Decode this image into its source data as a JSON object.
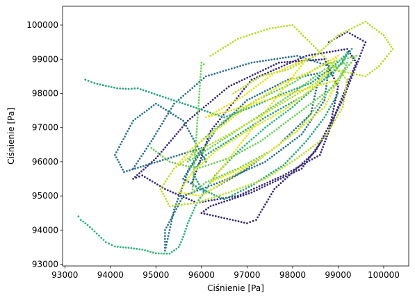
{
  "chart_data": {
    "type": "scatter",
    "xlabel": "Ciśnienie [Pa]",
    "ylabel": "Ciśnienie [Pa]",
    "xlim": [
      92950,
      100550
    ],
    "ylim": [
      92950,
      100550
    ],
    "xticks": [
      93000,
      94000,
      95000,
      96000,
      97000,
      98000,
      99000,
      100000
    ],
    "yticks": [
      93000,
      94000,
      95000,
      96000,
      97000,
      98000,
      99000,
      100000
    ],
    "xtick_labels": [
      "93000",
      "94000",
      "95000",
      "96000",
      "97000",
      "98000",
      "99000",
      "100000"
    ],
    "ytick_labels": [
      "93000",
      "94000",
      "95000",
      "96000",
      "97000",
      "98000",
      "99000",
      "100000"
    ],
    "grid": false,
    "colormap": "viridis",
    "color_stops": [
      "#440154",
      "#3b528b",
      "#21918c",
      "#5ec962",
      "#fde725"
    ],
    "series": [
      {
        "color": "#3b2a7a",
        "points": [
          [
            95800,
            95400
          ],
          [
            96200,
            96900
          ],
          [
            97100,
            98400
          ],
          [
            98300,
            99100
          ],
          [
            99200,
            99300
          ],
          [
            99400,
            98900
          ],
          [
            99000,
            97600
          ],
          [
            98600,
            96200
          ],
          [
            97800,
            95600
          ],
          [
            96800,
            95000
          ],
          [
            95900,
            94800
          ],
          [
            95200,
            95200
          ],
          [
            94700,
            95600
          ],
          [
            94500,
            95500
          ],
          [
            95000,
            96100
          ],
          [
            95700,
            97200
          ],
          [
            96600,
            98200
          ],
          [
            97700,
            98900
          ],
          [
            98700,
            99000
          ],
          [
            99000,
            98200
          ],
          [
            98800,
            96900
          ],
          [
            98200,
            95800
          ],
          [
            97100,
            95100
          ],
          [
            96200,
            94700
          ],
          [
            96000,
            94500
          ],
          [
            97000,
            94200
          ],
          [
            97200,
            94300
          ],
          [
            97600,
            95200
          ],
          [
            98500,
            96300
          ],
          [
            99100,
            97800
          ],
          [
            99600,
            99500
          ],
          [
            99200,
            99800
          ],
          [
            98800,
            99500
          ]
        ]
      },
      {
        "color": "#2c728e",
        "points": [
          [
            94500,
            95800
          ],
          [
            94900,
            96600
          ],
          [
            95400,
            97700
          ],
          [
            96100,
            98500
          ],
          [
            97100,
            98900
          ],
          [
            98100,
            99100
          ],
          [
            98800,
            98800
          ],
          [
            98700,
            97800
          ],
          [
            98200,
            96800
          ],
          [
            97400,
            96000
          ],
          [
            96400,
            95400
          ],
          [
            95600,
            95000
          ],
          [
            95200,
            94000
          ],
          [
            95200,
            93400
          ],
          [
            95400,
            94600
          ],
          [
            95700,
            95700
          ],
          [
            96300,
            96900
          ],
          [
            97000,
            97800
          ],
          [
            97900,
            98400
          ],
          [
            98600,
            98600
          ],
          [
            98400,
            97400
          ],
          [
            97700,
            96500
          ],
          [
            96900,
            95700
          ],
          [
            96100,
            95100
          ],
          [
            95600,
            95500
          ],
          [
            96000,
            96400
          ],
          [
            94300,
            95700
          ],
          [
            94100,
            96200
          ],
          [
            94500,
            97200
          ],
          [
            95000,
            97700
          ],
          [
            95600,
            97200
          ],
          [
            96100,
            96000
          ]
        ]
      },
      {
        "color": "#24a27f",
        "points": [
          [
            93450,
            98400
          ],
          [
            93650,
            98300
          ],
          [
            93900,
            98220
          ],
          [
            94150,
            98150
          ],
          [
            94400,
            98130
          ],
          [
            94600,
            98150
          ],
          [
            96500,
            97300
          ],
          [
            97100,
            97600
          ],
          [
            97800,
            98000
          ],
          [
            98400,
            98300
          ],
          [
            98900,
            98800
          ],
          [
            99300,
            99300
          ],
          [
            98900,
            98600
          ],
          [
            98200,
            97900
          ],
          [
            97400,
            97300
          ],
          [
            96700,
            96700
          ],
          [
            96100,
            96200
          ],
          [
            95800,
            95700
          ],
          [
            96000,
            95200
          ],
          [
            96500,
            94900
          ],
          [
            97100,
            95300
          ],
          [
            97800,
            95900
          ],
          [
            98300,
            96600
          ],
          [
            98700,
            97300
          ],
          [
            99000,
            98000
          ]
        ]
      },
      {
        "color": "#2db27d",
        "points": [
          [
            93300,
            94400
          ],
          [
            93350,
            94300
          ],
          [
            93500,
            94150
          ],
          [
            93700,
            93900
          ],
          [
            93900,
            93650
          ],
          [
            94100,
            93520
          ],
          [
            94400,
            93480
          ],
          [
            94700,
            93430
          ],
          [
            95000,
            93320
          ],
          [
            95300,
            93310
          ],
          [
            95500,
            93500
          ],
          [
            95600,
            93800
          ],
          [
            95700,
            94200
          ],
          [
            95900,
            94800
          ],
          [
            96300,
            95600
          ],
          [
            96800,
            96300
          ],
          [
            97400,
            97000
          ],
          [
            98000,
            97600
          ],
          [
            98600,
            98300
          ],
          [
            99100,
            98900
          ],
          [
            99200,
            99200
          ]
        ]
      },
      {
        "color": "#6ccd5a",
        "points": [
          [
            94900,
            96400
          ],
          [
            95300,
            96000
          ],
          [
            95900,
            95800
          ],
          [
            96600,
            96100
          ],
          [
            97300,
            96600
          ],
          [
            98000,
            97300
          ],
          [
            98600,
            97900
          ],
          [
            99000,
            98300
          ],
          [
            99200,
            98900
          ],
          [
            98700,
            98700
          ],
          [
            98000,
            98000
          ],
          [
            97100,
            97200
          ],
          [
            96300,
            96500
          ],
          [
            95700,
            96000
          ],
          [
            95900,
            96500
          ],
          [
            96500,
            97200
          ],
          [
            97200,
            97800
          ],
          [
            98000,
            98300
          ],
          [
            98600,
            98800
          ],
          [
            99400,
            99100
          ],
          [
            98100,
            96900
          ],
          [
            97500,
            96300
          ],
          [
            96800,
            95800
          ],
          [
            96100,
            95400
          ],
          [
            95800,
            95100
          ],
          [
            96000,
            98900
          ],
          [
            96050,
            98850
          ]
        ]
      },
      {
        "color": "#b5de2b",
        "points": [
          [
            96700,
            98000
          ],
          [
            97300,
            98500
          ],
          [
            97900,
            98700
          ],
          [
            98500,
            99100
          ],
          [
            99000,
            99700
          ],
          [
            99600,
            100100
          ],
          [
            100000,
            99700
          ],
          [
            100200,
            99300
          ],
          [
            99900,
            98800
          ],
          [
            99600,
            98500
          ],
          [
            98900,
            98700
          ],
          [
            98500,
            98300
          ],
          [
            97500,
            97500
          ],
          [
            96600,
            96800
          ],
          [
            95900,
            96300
          ],
          [
            95400,
            95800
          ],
          [
            95100,
            95200
          ],
          [
            95300,
            94700
          ],
          [
            95900,
            94800
          ],
          [
            96600,
            95100
          ],
          [
            97400,
            95500
          ],
          [
            98100,
            96100
          ],
          [
            98700,
            96700
          ],
          [
            99100,
            97600
          ],
          [
            99200,
            98400
          ],
          [
            98000,
            100000
          ],
          [
            97500,
            99900
          ],
          [
            96800,
            99600
          ],
          [
            96200,
            99100
          ]
        ]
      },
      {
        "color": "#e4e419",
        "points": [
          [
            95400,
            95800
          ],
          [
            95800,
            96400
          ],
          [
            96400,
            97000
          ],
          [
            97100,
            97700
          ],
          [
            97800,
            98300
          ],
          [
            98500,
            98700
          ],
          [
            99000,
            99100
          ],
          [
            98500,
            98200
          ],
          [
            97800,
            97500
          ],
          [
            97000,
            96900
          ],
          [
            96300,
            96300
          ],
          [
            95800,
            95700
          ],
          [
            95500,
            95100
          ],
          [
            96000,
            95000
          ],
          [
            96700,
            95600
          ],
          [
            97400,
            96200
          ],
          [
            98100,
            96900
          ],
          [
            98700,
            97600
          ],
          [
            99000,
            98400
          ],
          [
            96100,
            97300
          ],
          [
            96900,
            97900
          ],
          [
            97600,
            98600
          ],
          [
            98300,
            99000
          ],
          [
            96200,
            95400
          ],
          [
            96700,
            95700
          ],
          [
            97300,
            96100
          ]
        ]
      }
    ]
  }
}
